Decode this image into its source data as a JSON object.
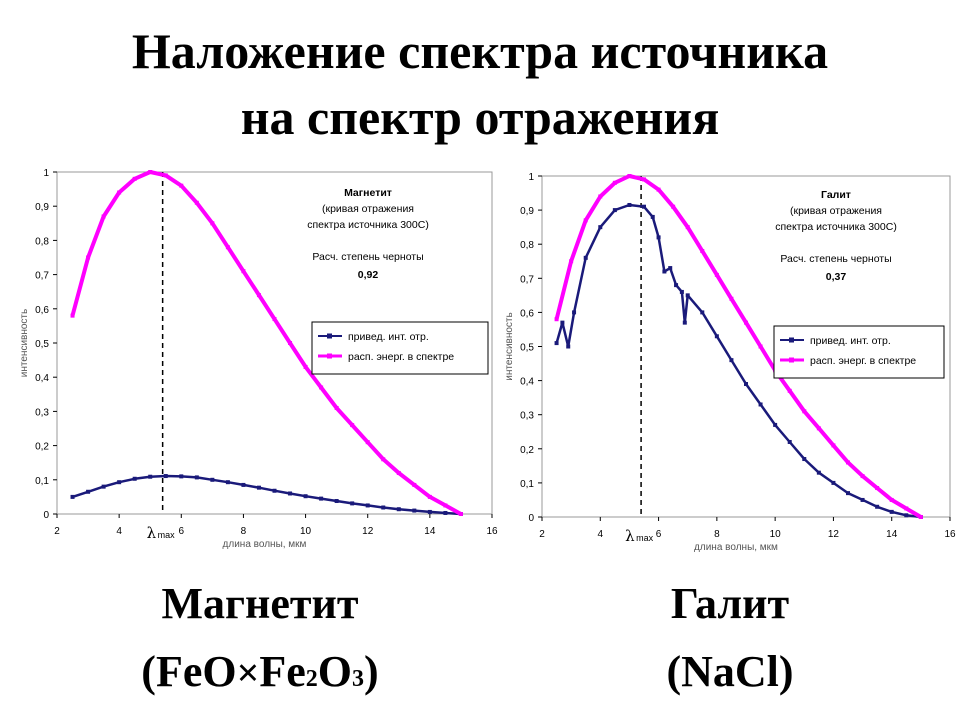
{
  "title_line1": "Наложение спектра источника",
  "title_line2": "на спектр отражения",
  "captions": {
    "left_name": "Магнетит",
    "left_formula": {
      "open": "(",
      "a": "FeO",
      "times": "×",
      "b": "Fe",
      "sub1": "2",
      "c": "O",
      "sub2": "3",
      "close": ")"
    },
    "right_name": "Галит",
    "right_formula": "(NaCl)"
  },
  "colors": {
    "reflect": "#1a1a7a",
    "source": "#ff00ff",
    "frame": "#999999"
  },
  "chart_data": [
    {
      "type": "line",
      "xlabel": "длина волны, мкм",
      "ylabel": "интенсивность",
      "xlim": [
        2,
        16
      ],
      "ylim": [
        0,
        1
      ],
      "xticks": [
        "2",
        "4",
        "6",
        "8",
        "10",
        "12",
        "14",
        "16"
      ],
      "yticks": [
        "0",
        "0,1",
        "0,2",
        "0,3",
        "0,4",
        "0,5",
        "0,6",
        "0,7",
        "0,8",
        "0,9",
        "1"
      ],
      "lambda_label": "λmax",
      "lambda_x": 5.4,
      "annotation": {
        "name": "Магнетит",
        "line1": "(кривая отражения",
        "line2": "спектра источника 300С)",
        "line3": "Расч. степень черноты",
        "value": "0,92"
      },
      "legend": {
        "position": "right-middle",
        "items": [
          "привед. инт. отр.",
          "расп. энерг. в спектре"
        ]
      },
      "series": [
        {
          "name": "привед. инт. отр.",
          "color": "#1a1a7a",
          "points": [
            [
              2.5,
              0.05
            ],
            [
              3,
              0.065
            ],
            [
              3.5,
              0.08
            ],
            [
              4,
              0.093
            ],
            [
              4.5,
              0.103
            ],
            [
              5,
              0.109
            ],
            [
              5.5,
              0.111
            ],
            [
              6,
              0.11
            ],
            [
              6.5,
              0.107
            ],
            [
              7,
              0.1
            ],
            [
              7.5,
              0.093
            ],
            [
              8,
              0.085
            ],
            [
              8.5,
              0.077
            ],
            [
              9,
              0.068
            ],
            [
              9.5,
              0.06
            ],
            [
              10,
              0.052
            ],
            [
              10.5,
              0.045
            ],
            [
              11,
              0.038
            ],
            [
              11.5,
              0.031
            ],
            [
              12,
              0.025
            ],
            [
              12.5,
              0.019
            ],
            [
              13,
              0.014
            ],
            [
              13.5,
              0.01
            ],
            [
              14,
              0.006
            ],
            [
              14.5,
              0.003
            ],
            [
              15,
              0.0
            ]
          ]
        },
        {
          "name": "расп. энерг. в спектре",
          "color": "#ff00ff",
          "points": [
            [
              2.5,
              0.58
            ],
            [
              3,
              0.75
            ],
            [
              3.5,
              0.87
            ],
            [
              4,
              0.94
            ],
            [
              4.5,
              0.98
            ],
            [
              5,
              1.0
            ],
            [
              5.5,
              0.99
            ],
            [
              6,
              0.96
            ],
            [
              6.5,
              0.91
            ],
            [
              7,
              0.85
            ],
            [
              7.5,
              0.78
            ],
            [
              8,
              0.71
            ],
            [
              8.5,
              0.64
            ],
            [
              9,
              0.57
            ],
            [
              9.5,
              0.5
            ],
            [
              10,
              0.43
            ],
            [
              10.5,
              0.37
            ],
            [
              11,
              0.31
            ],
            [
              11.5,
              0.26
            ],
            [
              12,
              0.21
            ],
            [
              12.5,
              0.16
            ],
            [
              13,
              0.12
            ],
            [
              13.5,
              0.085
            ],
            [
              14,
              0.05
            ],
            [
              14.5,
              0.025
            ],
            [
              15,
              0.0
            ]
          ]
        }
      ]
    },
    {
      "type": "line",
      "xlabel": "длина волны, мкм",
      "ylabel": "интенсивность",
      "xlim": [
        2,
        16
      ],
      "ylim": [
        0,
        1
      ],
      "xticks": [
        "2",
        "4",
        "6",
        "8",
        "10",
        "12",
        "14",
        "16"
      ],
      "yticks": [
        "0",
        "0,1",
        "0,2",
        "0,3",
        "0,4",
        "0,5",
        "0,6",
        "0,7",
        "0,8",
        "0,9",
        "1"
      ],
      "lambda_label": "λmax",
      "lambda_x": 5.4,
      "annotation": {
        "name": "Галит",
        "line1": "(кривая отражения",
        "line2": "спектра источника 300С)",
        "line3": "Расч. степень черноты",
        "value": "0,37"
      },
      "legend": {
        "position": "right-middle",
        "items": [
          "привед. инт. отр.",
          "расп. энерг. в спектре"
        ]
      },
      "series": [
        {
          "name": "привед. инт. отр.",
          "color": "#1a1a7a",
          "points": [
            [
              2.5,
              0.51
            ],
            [
              2.7,
              0.57
            ],
            [
              2.9,
              0.5
            ],
            [
              3.1,
              0.6
            ],
            [
              3.5,
              0.76
            ],
            [
              4,
              0.85
            ],
            [
              4.5,
              0.9
            ],
            [
              5,
              0.915
            ],
            [
              5.5,
              0.91
            ],
            [
              5.8,
              0.88
            ],
            [
              6,
              0.82
            ],
            [
              6.2,
              0.72
            ],
            [
              6.4,
              0.73
            ],
            [
              6.6,
              0.68
            ],
            [
              6.8,
              0.66
            ],
            [
              6.9,
              0.57
            ],
            [
              7,
              0.65
            ],
            [
              7.5,
              0.6
            ],
            [
              8,
              0.53
            ],
            [
              8.5,
              0.46
            ],
            [
              9,
              0.39
            ],
            [
              9.5,
              0.33
            ],
            [
              10,
              0.27
            ],
            [
              10.5,
              0.22
            ],
            [
              11,
              0.17
            ],
            [
              11.5,
              0.13
            ],
            [
              12,
              0.1
            ],
            [
              12.5,
              0.07
            ],
            [
              13,
              0.05
            ],
            [
              13.5,
              0.03
            ],
            [
              14,
              0.015
            ],
            [
              14.5,
              0.005
            ],
            [
              15,
              0.0
            ]
          ]
        },
        {
          "name": "расп. энерг. в спектре",
          "color": "#ff00ff",
          "points": [
            [
              2.5,
              0.58
            ],
            [
              3,
              0.75
            ],
            [
              3.5,
              0.87
            ],
            [
              4,
              0.94
            ],
            [
              4.5,
              0.98
            ],
            [
              5,
              1.0
            ],
            [
              5.5,
              0.99
            ],
            [
              6,
              0.96
            ],
            [
              6.5,
              0.91
            ],
            [
              7,
              0.85
            ],
            [
              7.5,
              0.78
            ],
            [
              8,
              0.71
            ],
            [
              8.5,
              0.64
            ],
            [
              9,
              0.57
            ],
            [
              9.5,
              0.5
            ],
            [
              10,
              0.43
            ],
            [
              10.5,
              0.37
            ],
            [
              11,
              0.31
            ],
            [
              11.5,
              0.26
            ],
            [
              12,
              0.21
            ],
            [
              12.5,
              0.16
            ],
            [
              13,
              0.12
            ],
            [
              13.5,
              0.085
            ],
            [
              14,
              0.05
            ],
            [
              14.5,
              0.025
            ],
            [
              15,
              0.0
            ]
          ]
        }
      ]
    }
  ]
}
